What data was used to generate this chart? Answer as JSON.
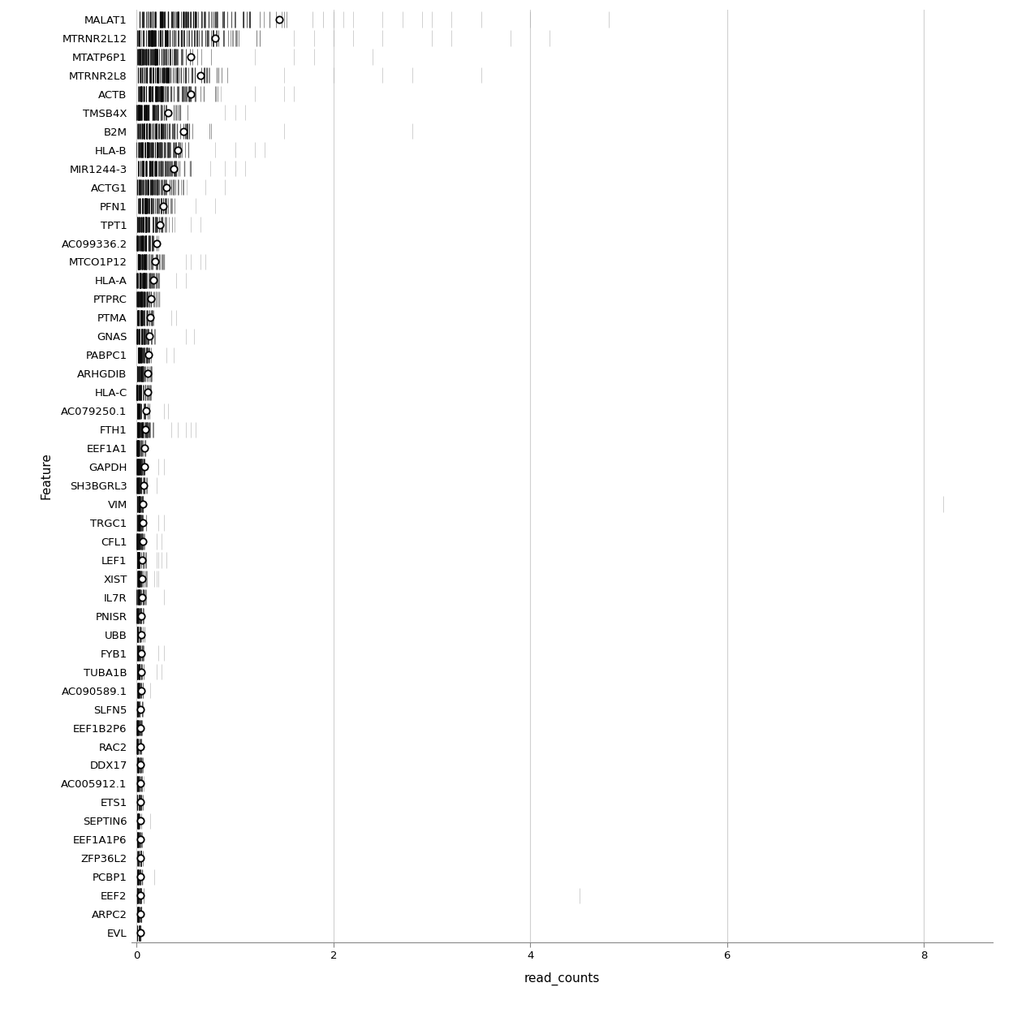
{
  "features": [
    "MALAT1",
    "MTRNR2L12",
    "MTATP6P1",
    "MTRNR2L8",
    "ACTB",
    "TMSB4X",
    "B2M",
    "HLA-B",
    "MIR1244-3",
    "ACTG1",
    "PFN1",
    "TPT1",
    "AC099336.2",
    "MTCO1P12",
    "HLA-A",
    "PTPRC",
    "PTMA",
    "GNAS",
    "PABPC1",
    "ARHGDIB",
    "HLA-C",
    "AC079250.1",
    "FTH1",
    "EEF1A1",
    "GAPDH",
    "SH3BGRL3",
    "VIM",
    "TRGC1",
    "CFL1",
    "LEF1",
    "XIST",
    "IL7R",
    "PNISR",
    "UBB",
    "FYB1",
    "TUBA1B",
    "AC090589.1",
    "SLFN5",
    "EEF1B2P6",
    "RAC2",
    "DDX17",
    "AC005912.1",
    "ETS1",
    "SEPTIN6",
    "EEF1A1P6",
    "ZFP36L2",
    "PCBP1",
    "EEF2",
    "ARPC2",
    "EVL"
  ],
  "xlim": [
    -0.05,
    8.7
  ],
  "xticks": [
    0,
    2,
    4,
    6,
    8
  ],
  "xlabel": "read_counts",
  "ylabel": "Feature",
  "background_color": "#ffffff",
  "grid_color": "#d0d0d0",
  "circle_fill": "#ffffff",
  "circle_edge": "#000000",
  "tick_fontsize": 9.5,
  "axis_label_fontsize": 11,
  "seed": 42,
  "feature_data": {
    "MALAT1": {
      "mean": 1.45,
      "n_dense": 120,
      "dense_max": 2.0,
      "sparse": [
        2.2,
        2.5,
        2.7,
        3.0,
        3.2,
        3.5,
        4.0,
        4.8,
        2.0,
        2.1,
        2.9,
        0.05,
        0.08
      ],
      "control": true
    },
    "MTRNR2L12": {
      "mean": 0.8,
      "n_dense": 110,
      "dense_max": 1.5,
      "sparse": [
        2.0,
        2.2,
        2.5,
        3.0,
        3.2,
        3.8,
        4.2,
        1.8,
        1.6,
        0.05
      ],
      "control": true
    },
    "MTATP6P1": {
      "mean": 0.55,
      "n_dense": 80,
      "dense_max": 0.9,
      "sparse": [
        1.2,
        1.6,
        1.8,
        2.4,
        0.05
      ],
      "control": false
    },
    "MTRNR2L8": {
      "mean": 0.65,
      "n_dense": 95,
      "dense_max": 1.2,
      "sparse": [
        1.5,
        2.0,
        2.5,
        2.8,
        3.5,
        0.05,
        0.06
      ],
      "control": true
    },
    "ACTB": {
      "mean": 0.55,
      "n_dense": 90,
      "dense_max": 1.0,
      "sparse": [
        1.2,
        1.5,
        1.6,
        0.06
      ],
      "control": false
    },
    "TMSB4X": {
      "mean": 0.32,
      "n_dense": 70,
      "dense_max": 0.65,
      "sparse": [
        0.9,
        1.0,
        1.1
      ],
      "control": false
    },
    "B2M": {
      "mean": 0.48,
      "n_dense": 85,
      "dense_max": 0.9,
      "sparse": [
        1.5,
        2.8,
        0.05
      ],
      "control": true
    },
    "HLA-B": {
      "mean": 0.42,
      "n_dense": 80,
      "dense_max": 0.75,
      "sparse": [
        0.8,
        1.0,
        1.2,
        1.3
      ],
      "control": false
    },
    "MIR1244-3": {
      "mean": 0.38,
      "n_dense": 75,
      "dense_max": 0.7,
      "sparse": [
        0.75,
        0.9,
        1.0,
        1.1
      ],
      "control": true
    },
    "ACTG1": {
      "mean": 0.3,
      "n_dense": 65,
      "dense_max": 0.6,
      "sparse": [
        0.7,
        0.9,
        0.08
      ],
      "control": false
    },
    "PFN1": {
      "mean": 0.27,
      "n_dense": 60,
      "dense_max": 0.5,
      "sparse": [
        0.6,
        0.8,
        0.07
      ],
      "control": false
    },
    "TPT1": {
      "mean": 0.24,
      "n_dense": 55,
      "dense_max": 0.45,
      "sparse": [
        0.55,
        0.65
      ],
      "control": false
    },
    "AC099336.2": {
      "mean": 0.2,
      "n_dense": 45,
      "dense_max": 0.35,
      "sparse": [],
      "control": false
    },
    "MTCO1P12": {
      "mean": 0.19,
      "n_dense": 50,
      "dense_max": 0.35,
      "sparse": [
        0.5,
        0.55,
        0.65,
        0.7
      ],
      "control": true
    },
    "HLA-A": {
      "mean": 0.17,
      "n_dense": 48,
      "dense_max": 0.32,
      "sparse": [
        0.4,
        0.5
      ],
      "control": false
    },
    "PTPRC": {
      "mean": 0.15,
      "n_dense": 42,
      "dense_max": 0.28,
      "sparse": [],
      "control": false
    },
    "PTMA": {
      "mean": 0.14,
      "n_dense": 38,
      "dense_max": 0.26,
      "sparse": [
        0.35,
        0.4
      ],
      "control": false
    },
    "GNAS": {
      "mean": 0.13,
      "n_dense": 38,
      "dense_max": 0.25,
      "sparse": [
        0.5,
        0.58,
        0.06
      ],
      "control": true
    },
    "PABPC1": {
      "mean": 0.12,
      "n_dense": 35,
      "dense_max": 0.22,
      "sparse": [
        0.3,
        0.38
      ],
      "control": false
    },
    "ARHGDIB": {
      "mean": 0.11,
      "n_dense": 30,
      "dense_max": 0.2,
      "sparse": [],
      "control": false
    },
    "HLA-C": {
      "mean": 0.11,
      "n_dense": 32,
      "dense_max": 0.2,
      "sparse": [],
      "control": false
    },
    "AC079250.1": {
      "mean": 0.1,
      "n_dense": 28,
      "dense_max": 0.18,
      "sparse": [
        0.28,
        0.32
      ],
      "control": true
    },
    "FTH1": {
      "mean": 0.09,
      "n_dense": 38,
      "dense_max": 0.22,
      "sparse": [
        0.35,
        0.42,
        0.5,
        0.55,
        0.6,
        0.07,
        0.07,
        0.08
      ],
      "control": false
    },
    "EEF1A1": {
      "mean": 0.08,
      "n_dense": 22,
      "dense_max": 0.12,
      "sparse": [],
      "control": false
    },
    "GAPDH": {
      "mean": 0.08,
      "n_dense": 28,
      "dense_max": 0.15,
      "sparse": [
        0.22,
        0.28,
        0.06
      ],
      "control": true
    },
    "SH3BGRL3": {
      "mean": 0.07,
      "n_dense": 25,
      "dense_max": 0.14,
      "sparse": [
        0.2,
        0.06
      ],
      "control": true
    },
    "VIM": {
      "mean": 0.065,
      "n_dense": 20,
      "dense_max": 0.13,
      "sparse": [
        8.2
      ],
      "control": false
    },
    "TRGC1": {
      "mean": 0.06,
      "n_dense": 20,
      "dense_max": 0.12,
      "sparse": [
        0.22,
        0.28
      ],
      "control": true
    },
    "CFL1": {
      "mean": 0.06,
      "n_dense": 20,
      "dense_max": 0.12,
      "sparse": [
        0.2,
        0.25
      ],
      "control": false
    },
    "LEF1": {
      "mean": 0.055,
      "n_dense": 25,
      "dense_max": 0.14,
      "sparse": [
        0.2,
        0.22,
        0.25,
        0.3,
        0.06,
        0.06
      ],
      "control": false
    },
    "XIST": {
      "mean": 0.055,
      "n_dense": 24,
      "dense_max": 0.13,
      "sparse": [
        0.18,
        0.2,
        0.22,
        0.06,
        0.07
      ],
      "control": false
    },
    "IL7R": {
      "mean": 0.055,
      "n_dense": 20,
      "dense_max": 0.12,
      "sparse": [
        0.28
      ],
      "control": true
    },
    "PNISR": {
      "mean": 0.05,
      "n_dense": 18,
      "dense_max": 0.1,
      "sparse": [],
      "control": true
    },
    "UBB": {
      "mean": 0.05,
      "n_dense": 18,
      "dense_max": 0.1,
      "sparse": [],
      "control": false
    },
    "FYB1": {
      "mean": 0.048,
      "n_dense": 18,
      "dense_max": 0.1,
      "sparse": [
        0.22,
        0.28
      ],
      "control": false
    },
    "TUBA1B": {
      "mean": 0.048,
      "n_dense": 18,
      "dense_max": 0.1,
      "sparse": [
        0.2,
        0.25
      ],
      "control": true
    },
    "AC090589.1": {
      "mean": 0.046,
      "n_dense": 16,
      "dense_max": 0.09,
      "sparse": [
        0.14
      ],
      "control": true
    },
    "SLFN5": {
      "mean": 0.042,
      "n_dense": 16,
      "dense_max": 0.09,
      "sparse": [],
      "control": false
    },
    "EEF1B2P6": {
      "mean": 0.04,
      "n_dense": 14,
      "dense_max": 0.08,
      "sparse": [],
      "control": false
    },
    "RAC2": {
      "mean": 0.04,
      "n_dense": 14,
      "dense_max": 0.08,
      "sparse": [],
      "control": true
    },
    "DDX17": {
      "mean": 0.04,
      "n_dense": 14,
      "dense_max": 0.08,
      "sparse": [],
      "control": true
    },
    "AC005912.1": {
      "mean": 0.04,
      "n_dense": 14,
      "dense_max": 0.08,
      "sparse": [],
      "control": false
    },
    "ETS1": {
      "mean": 0.04,
      "n_dense": 14,
      "dense_max": 0.08,
      "sparse": [],
      "control": true
    },
    "SEPTIN6": {
      "mean": 0.038,
      "n_dense": 14,
      "dense_max": 0.08,
      "sparse": [
        0.14
      ],
      "control": false
    },
    "EEF1A1P6": {
      "mean": 0.038,
      "n_dense": 14,
      "dense_max": 0.08,
      "sparse": [],
      "control": false
    },
    "ZFP36L2": {
      "mean": 0.038,
      "n_dense": 15,
      "dense_max": 0.09,
      "sparse": [],
      "control": false
    },
    "PCBP1": {
      "mean": 0.038,
      "n_dense": 15,
      "dense_max": 0.09,
      "sparse": [
        0.18
      ],
      "control": true
    },
    "EEF2": {
      "mean": 0.038,
      "n_dense": 15,
      "dense_max": 0.09,
      "sparse": [
        4.5
      ],
      "control": false
    },
    "ARPC2": {
      "mean": 0.036,
      "n_dense": 14,
      "dense_max": 0.08,
      "sparse": [],
      "control": true
    },
    "EVL": {
      "mean": 0.036,
      "n_dense": 14,
      "dense_max": 0.08,
      "sparse": [],
      "control": false
    }
  }
}
